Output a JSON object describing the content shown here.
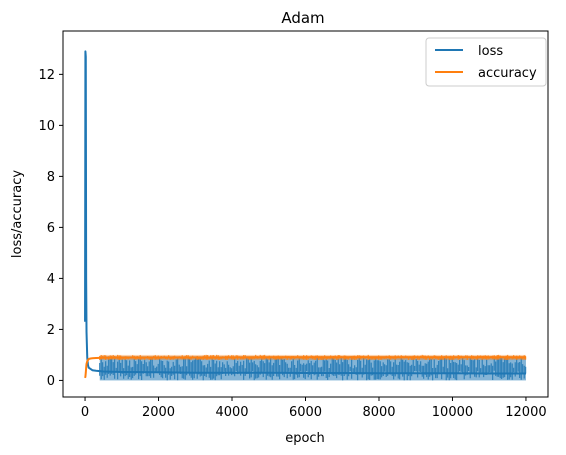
{
  "chart_data": {
    "type": "line",
    "title": "Adam",
    "xlabel": "epoch",
    "ylabel": "loss/accuracy",
    "xlim": [
      -600,
      12600
    ],
    "ylim": [
      -0.65,
      13.7
    ],
    "xticks": [
      0,
      2000,
      4000,
      6000,
      8000,
      10000,
      12000
    ],
    "yticks": [
      0,
      2,
      4,
      6,
      8,
      10,
      12
    ],
    "grid": false,
    "legend": {
      "position": "top-right",
      "entries": [
        "loss",
        "accuracy"
      ]
    },
    "series": [
      {
        "name": "loss",
        "color": "#1f77b4",
        "x": [
          0,
          10,
          20,
          30,
          40,
          60,
          80,
          100,
          150,
          200,
          300,
          500,
          1000,
          2000,
          3000,
          4000,
          5000,
          6000,
          7000,
          8000,
          9000,
          10000,
          11000,
          12000
        ],
        "y": [
          2.3,
          12.9,
          12.7,
          4.0,
          1.9,
          0.9,
          0.6,
          0.5,
          0.45,
          0.4,
          0.38,
          0.35,
          0.33,
          0.32,
          0.3,
          0.3,
          0.3,
          0.29,
          0.29,
          0.28,
          0.28,
          0.28,
          0.27,
          0.27
        ],
        "band_min": 0.0,
        "band_max": 0.95
      },
      {
        "name": "accuracy",
        "color": "#ff7f0e",
        "x": [
          0,
          10,
          20,
          30,
          40,
          60,
          80,
          100,
          150,
          200,
          300,
          500,
          1000,
          2000,
          3000,
          4000,
          5000,
          6000,
          7000,
          8000,
          9000,
          10000,
          11000,
          12000
        ],
        "y": [
          0.1,
          0.15,
          0.3,
          0.5,
          0.65,
          0.75,
          0.8,
          0.84,
          0.86,
          0.87,
          0.88,
          0.89,
          0.9,
          0.9,
          0.9,
          0.9,
          0.91,
          0.91,
          0.91,
          0.91,
          0.91,
          0.91,
          0.91,
          0.91
        ],
        "band_min": 0.8,
        "band_max": 1.0
      }
    ]
  },
  "colors": {
    "loss": "#1f77b4",
    "accuracy": "#ff7f0e"
  }
}
